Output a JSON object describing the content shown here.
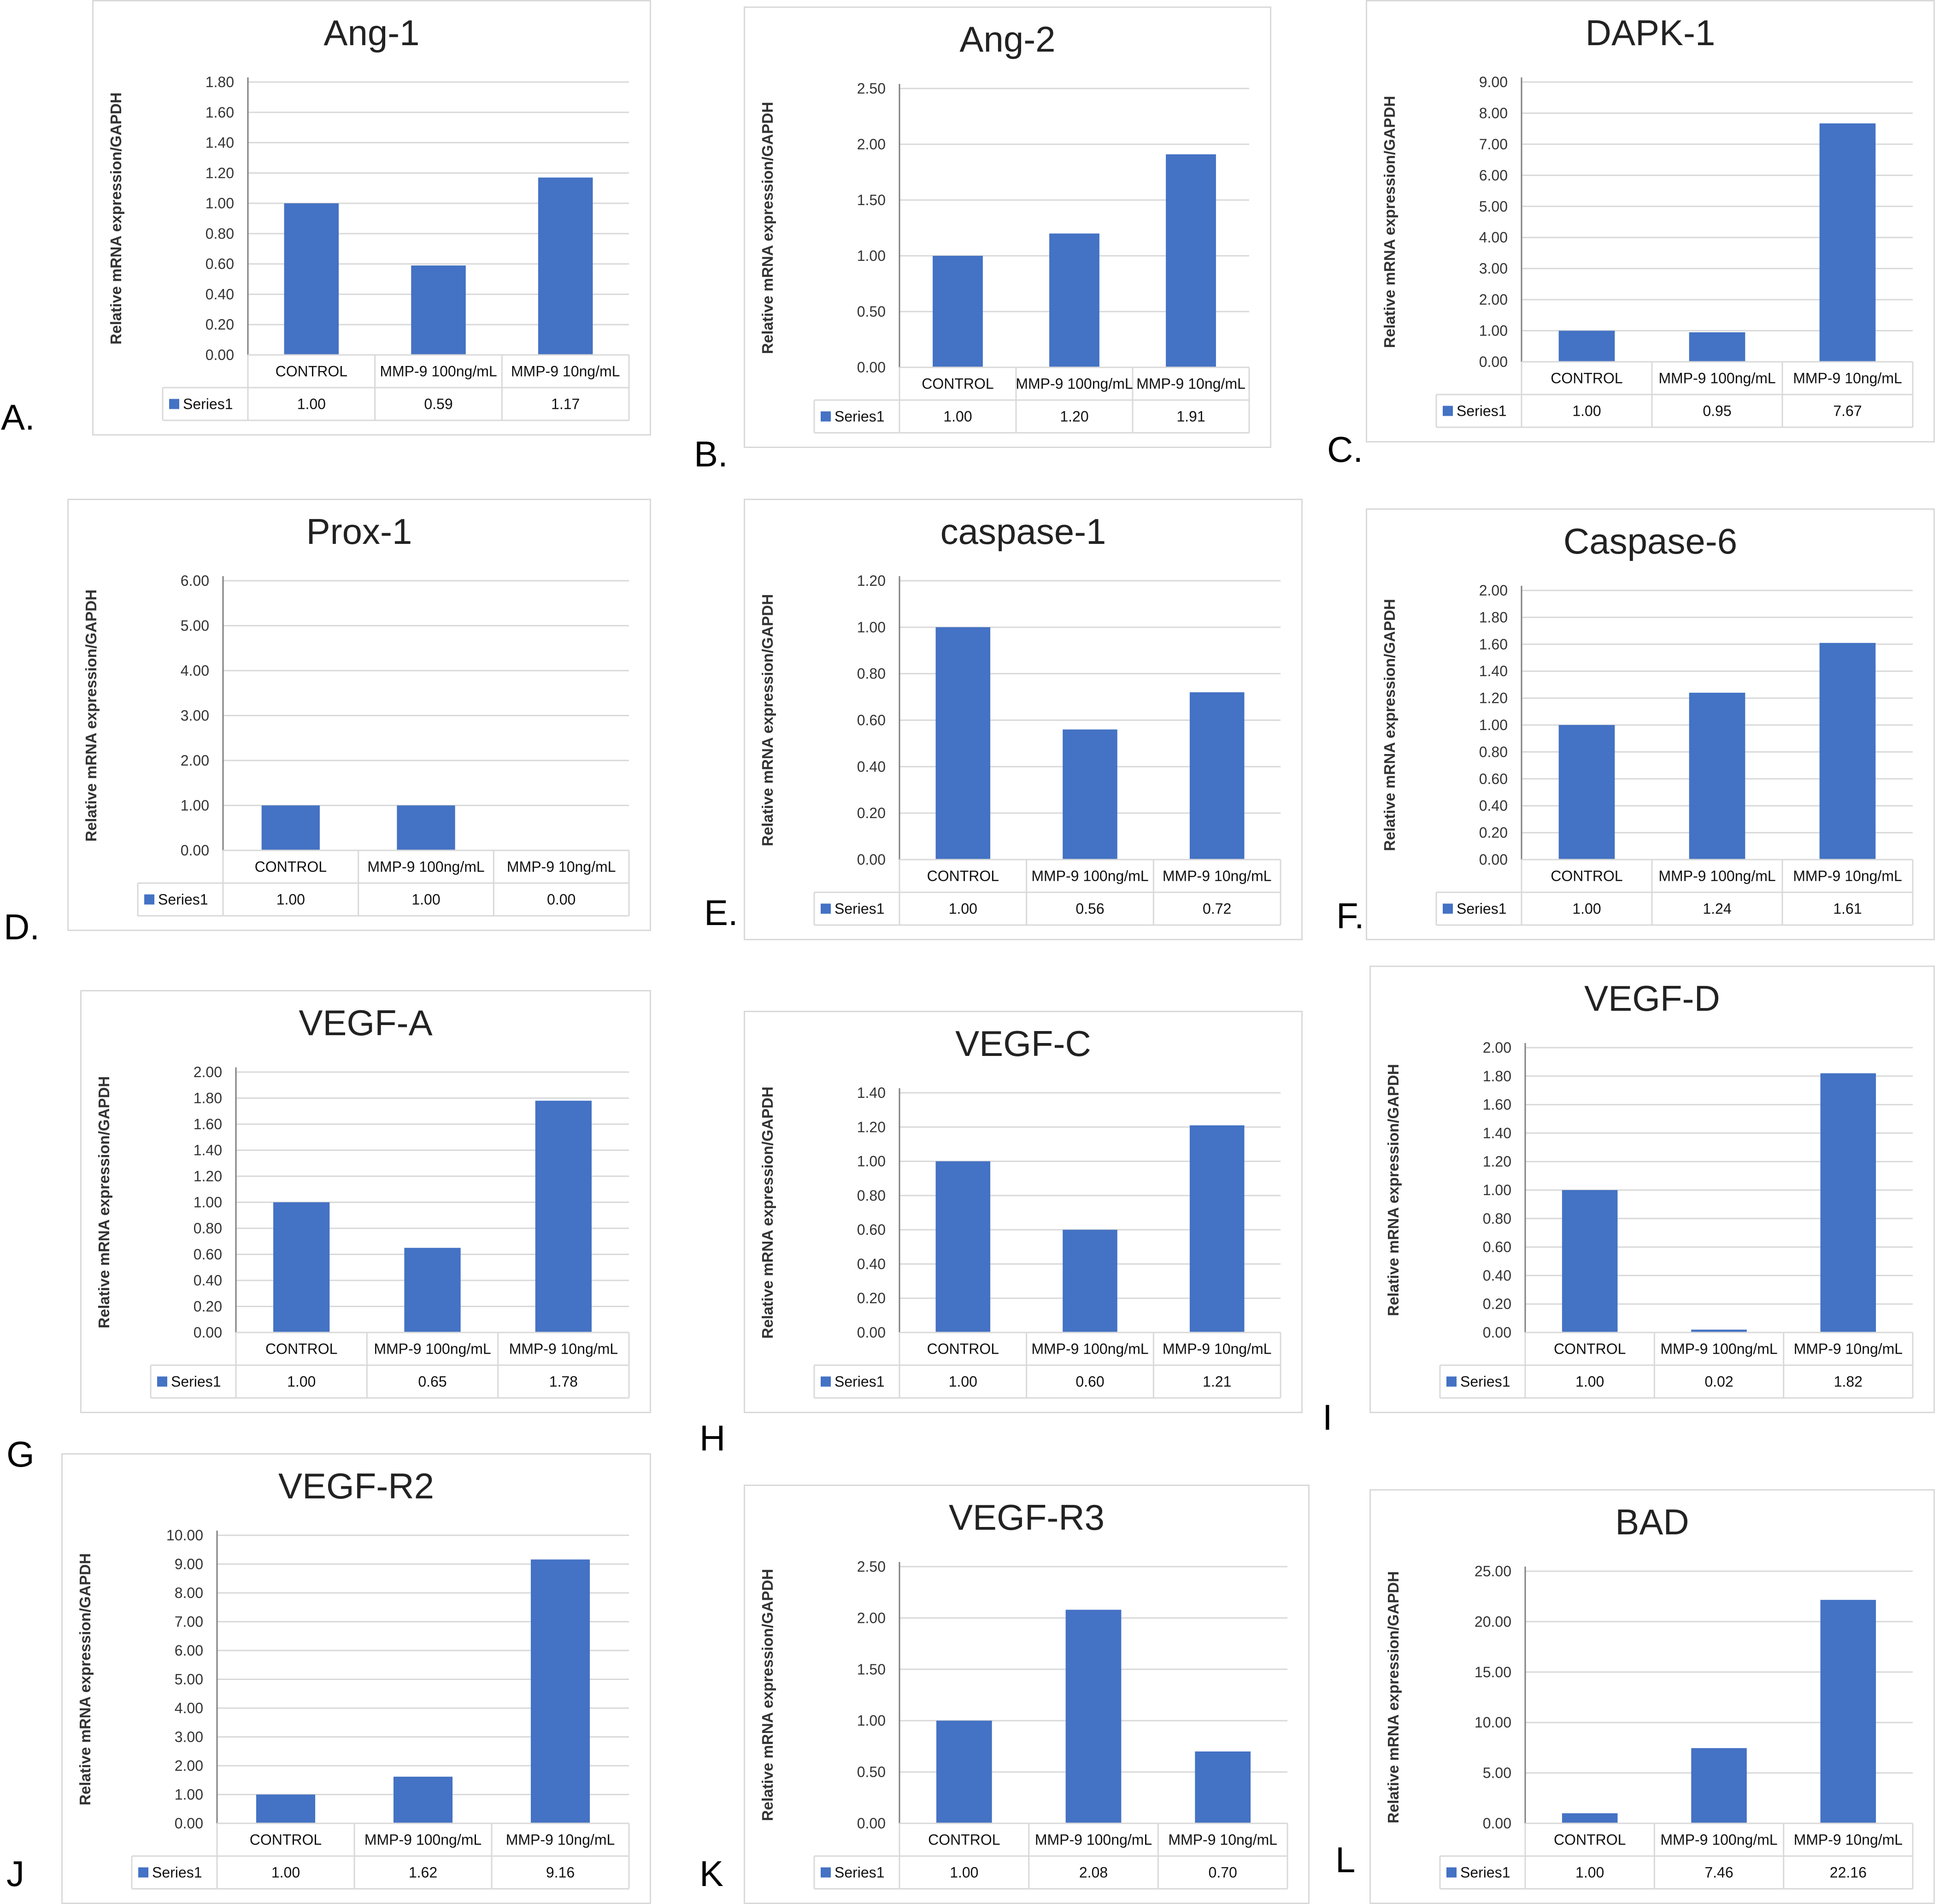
{
  "series_name": "Series1",
  "bar_color": "#4472c4",
  "y_axis_label": "Relative mRNA expression/GAPDH",
  "categories": [
    "CONTROL",
    "MMP-9 100ng/mL",
    "MMP-9 10ng/mL"
  ],
  "chart_data": [
    {
      "panel": "A.",
      "title": "Ang-1",
      "type": "bar",
      "categories": [
        "CONTROL",
        "MMP-9 100ng/mL",
        "MMP-9 10ng/mL"
      ],
      "series": [
        {
          "name": "Series1",
          "values": [
            1.0,
            0.59,
            1.17
          ],
          "labels": [
            "1.00",
            "0.59",
            "1.17"
          ]
        }
      ],
      "ylabel": "Relative mRNA expression/GAPDH",
      "ylim": [
        0,
        1.8
      ],
      "yticks": [
        "0.00",
        "0.20",
        "0.40",
        "0.60",
        "0.80",
        "1.00",
        "1.20",
        "1.40",
        "1.60",
        "1.80"
      ],
      "grid": true
    },
    {
      "panel": "B.",
      "title": "Ang-2",
      "type": "bar",
      "categories": [
        "CONTROL",
        "MMP-9 100ng/mL",
        "MMP-9 10ng/mL"
      ],
      "series": [
        {
          "name": "Series1",
          "values": [
            1.0,
            1.2,
            1.91
          ],
          "labels": [
            "1.00",
            "1.20",
            "1.91"
          ]
        }
      ],
      "ylabel": "Relative mRNA expression/GAPDH",
      "ylim": [
        0,
        2.5
      ],
      "yticks": [
        "0.00",
        "0.50",
        "1.00",
        "1.50",
        "2.00",
        "2.50"
      ],
      "grid": true
    },
    {
      "panel": "C.",
      "title": "DAPK-1",
      "type": "bar",
      "categories": [
        "CONTROL",
        "MMP-9 100ng/mL",
        "MMP-9 10ng/mL"
      ],
      "series": [
        {
          "name": "Series1",
          "values": [
            1.0,
            0.95,
            7.67
          ],
          "labels": [
            "1.00",
            "0.95",
            "7.67"
          ]
        }
      ],
      "ylabel": "Relative mRNA expression/GAPDH",
      "ylim": [
        0,
        9
      ],
      "yticks": [
        "0.00",
        "1.00",
        "2.00",
        "3.00",
        "4.00",
        "5.00",
        "6.00",
        "7.00",
        "8.00",
        "9.00"
      ],
      "grid": true
    },
    {
      "panel": "D.",
      "title": "Prox-1",
      "type": "bar",
      "categories": [
        "CONTROL",
        "MMP-9 100ng/mL",
        "MMP-9 10ng/mL"
      ],
      "series": [
        {
          "name": "Series1",
          "values": [
            1.0,
            1.0,
            0.0
          ],
          "labels": [
            "1.00",
            "1.00",
            "0.00"
          ]
        }
      ],
      "ylabel": "Relative mRNA expression/GAPDH",
      "ylim": [
        0,
        6
      ],
      "yticks": [
        "0.00",
        "1.00",
        "2.00",
        "3.00",
        "4.00",
        "5.00",
        "6.00"
      ],
      "grid": true
    },
    {
      "panel": "E.",
      "title": "caspase-1",
      "type": "bar",
      "categories": [
        "CONTROL",
        "MMP-9 100ng/mL",
        "MMP-9 10ng/mL"
      ],
      "series": [
        {
          "name": "Series1",
          "values": [
            1.0,
            0.56,
            0.72
          ],
          "labels": [
            "1.00",
            "0.56",
            "0.72"
          ]
        }
      ],
      "ylabel": "Relative mRNA expression/GAPDH",
      "ylim": [
        0,
        1.2
      ],
      "yticks": [
        "0.00",
        "0.20",
        "0.40",
        "0.60",
        "0.80",
        "1.00",
        "1.20"
      ],
      "grid": true
    },
    {
      "panel": "F.",
      "title": "Caspase-6",
      "type": "bar",
      "categories": [
        "CONTROL",
        "MMP-9 100ng/mL",
        "MMP-9 10ng/mL"
      ],
      "series": [
        {
          "name": "Series1",
          "values": [
            1.0,
            1.24,
            1.61
          ],
          "labels": [
            "1.00",
            "1.24",
            "1.61"
          ]
        }
      ],
      "ylabel": "Relative mRNA expression/GAPDH",
      "ylim": [
        0,
        2
      ],
      "yticks": [
        "0.00",
        "0.20",
        "0.40",
        "0.60",
        "0.80",
        "1.00",
        "1.20",
        "1.40",
        "1.60",
        "1.80",
        "2.00"
      ],
      "grid": true
    },
    {
      "panel": "G",
      "title": "VEGF-A",
      "type": "bar",
      "categories": [
        "CONTROL",
        "MMP-9 100ng/mL",
        "MMP-9 10ng/mL"
      ],
      "series": [
        {
          "name": "Series1",
          "values": [
            1.0,
            0.65,
            1.78
          ],
          "labels": [
            "1.00",
            "0.65",
            "1.78"
          ]
        }
      ],
      "ylabel": "Relative mRNA expression/GAPDH",
      "ylim": [
        0,
        2
      ],
      "yticks": [
        "0.00",
        "0.20",
        "0.40",
        "0.60",
        "0.80",
        "1.00",
        "1.20",
        "1.40",
        "1.60",
        "1.80",
        "2.00"
      ],
      "grid": true
    },
    {
      "panel": "H",
      "title": "VEGF-C",
      "type": "bar",
      "categories": [
        "CONTROL",
        "MMP-9 100ng/mL",
        "MMP-9 10ng/mL"
      ],
      "series": [
        {
          "name": "Series1",
          "values": [
            1.0,
            0.6,
            1.21
          ],
          "labels": [
            "1.00",
            "0.60",
            "1.21"
          ]
        }
      ],
      "ylabel": "Relative mRNA expression/GAPDH",
      "ylim": [
        0,
        1.4
      ],
      "yticks": [
        "0.00",
        "0.20",
        "0.40",
        "0.60",
        "0.80",
        "1.00",
        "1.20",
        "1.40"
      ],
      "grid": true
    },
    {
      "panel": "I",
      "title": "VEGF-D",
      "type": "bar",
      "categories": [
        "CONTROL",
        "MMP-9 100ng/mL",
        "MMP-9 10ng/mL"
      ],
      "series": [
        {
          "name": "Series1",
          "values": [
            1.0,
            0.02,
            1.82
          ],
          "labels": [
            "1.00",
            "0.02",
            "1.82"
          ]
        }
      ],
      "ylabel": "Relative mRNA expression/GAPDH",
      "ylim": [
        0,
        2
      ],
      "yticks": [
        "0.00",
        "0.20",
        "0.40",
        "0.60",
        "0.80",
        "1.00",
        "1.20",
        "1.40",
        "1.60",
        "1.80",
        "2.00"
      ],
      "grid": true
    },
    {
      "panel": "J",
      "title": "VEGF-R2",
      "type": "bar",
      "categories": [
        "CONTROL",
        "MMP-9 100ng/mL",
        "MMP-9 10ng/mL"
      ],
      "series": [
        {
          "name": "Series1",
          "values": [
            1.0,
            1.62,
            9.16
          ],
          "labels": [
            "1.00",
            "1.62",
            "9.16"
          ]
        }
      ],
      "ylabel": "Relative mRNA expression/GAPDH",
      "ylim": [
        0,
        10
      ],
      "yticks": [
        "0.00",
        "1.00",
        "2.00",
        "3.00",
        "4.00",
        "5.00",
        "6.00",
        "7.00",
        "8.00",
        "9.00",
        "10.00"
      ],
      "grid": true
    },
    {
      "panel": "K",
      "title": "VEGF-R3",
      "type": "bar",
      "categories": [
        "CONTROL",
        "MMP-9 100ng/mL",
        "MMP-9 10ng/mL"
      ],
      "series": [
        {
          "name": "Series1",
          "values": [
            1.0,
            2.08,
            0.7
          ],
          "labels": [
            "1.00",
            "2.08",
            "0.70"
          ]
        }
      ],
      "ylabel": "Relative mRNA expression/GAPDH",
      "ylim": [
        0,
        2.5
      ],
      "yticks": [
        "0.00",
        "0.50",
        "1.00",
        "1.50",
        "2.00",
        "2.50"
      ],
      "grid": true
    },
    {
      "panel": "L",
      "title": "BAD",
      "type": "bar",
      "categories": [
        "CONTROL",
        "MMP-9 100ng/mL",
        "MMP-9 10ng/mL"
      ],
      "series": [
        {
          "name": "Series1",
          "values": [
            1.0,
            7.46,
            22.16
          ],
          "labels": [
            "1.00",
            "7.46",
            "22.16"
          ]
        }
      ],
      "ylabel": "Relative mRNA expression/GAPDH",
      "ylim": [
        0,
        25
      ],
      "yticks": [
        "0.00",
        "5.00",
        "10.00",
        "15.00",
        "20.00",
        "25.00"
      ],
      "grid": true
    }
  ]
}
